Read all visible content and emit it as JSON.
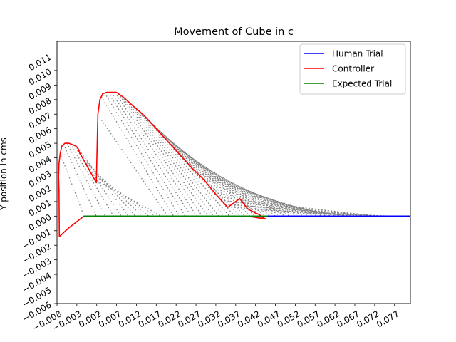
{
  "chart_data": {
    "type": "line",
    "title": "Movement of Cube in c",
    "xlabel": "",
    "ylabel": "Y position in cms",
    "xlim": [
      -0.008,
      0.081
    ],
    "ylim": [
      -0.006,
      0.012
    ],
    "x_ticks": [
      -0.008,
      -0.003,
      0.002,
      0.007,
      0.012,
      0.017,
      0.022,
      0.027,
      0.032,
      0.037,
      0.042,
      0.047,
      0.052,
      0.057,
      0.062,
      0.067,
      0.072,
      0.077
    ],
    "x_tick_labels": [
      "−0.008",
      "−0.003",
      "0.002",
      "0.007",
      "0.012",
      "0.017",
      "0.022",
      "0.027",
      "0.032",
      "0.037",
      "0.042",
      "0.047",
      "0.052",
      "0.057",
      "0.062",
      "0.067",
      "0.072",
      "0.077"
    ],
    "y_ticks": [
      -0.006,
      -0.005,
      -0.004,
      -0.003,
      -0.002,
      -0.001,
      0.0,
      0.001,
      0.002,
      0.003,
      0.004,
      0.005,
      0.006,
      0.007,
      0.008,
      0.009,
      0.01,
      0.011
    ],
    "y_tick_labels": [
      "−0.006",
      "−0.005",
      "−0.004",
      "−0.003",
      "−0.002",
      "−0.001",
      "0.000",
      "0.001",
      "0.002",
      "0.003",
      "0.004",
      "0.005",
      "0.006",
      "0.007",
      "0.008",
      "0.009",
      "0.010",
      "0.011"
    ],
    "grid": false,
    "legend_position": "top-right",
    "series": [
      {
        "name": "Human Trial",
        "color": "#0000ff",
        "x": [
          -0.0012,
          0.005,
          0.01,
          0.02,
          0.03,
          0.04,
          0.046,
          0.05,
          0.055,
          0.06,
          0.065,
          0.07,
          0.075,
          0.08,
          0.081
        ],
        "y": [
          0.0,
          0.0,
          0.0,
          0.0,
          0.0,
          0.0,
          0.0,
          0.0,
          0.0,
          0.0,
          0.0,
          0.0,
          0.0,
          0.0,
          0.0
        ]
      },
      {
        "name": "Controller",
        "color": "#ff0000",
        "x": [
          -0.0075,
          -0.0076,
          -0.0075,
          -0.0072,
          -0.0068,
          -0.006,
          -0.005,
          -0.004,
          -0.0032,
          -0.0026,
          -0.0024,
          0.0019,
          0.0022,
          0.0023,
          0.0028,
          0.0035,
          0.0045,
          0.0058,
          0.007,
          0.008,
          0.009,
          0.011,
          0.014,
          0.017,
          0.02,
          0.023,
          0.026,
          0.029,
          0.032,
          0.035,
          0.038,
          0.04,
          0.042,
          0.043,
          0.0438,
          0.0446,
          0.04,
          0.035,
          0.03,
          0.025,
          0.02,
          0.015,
          0.01,
          0.005,
          0.001,
          -0.0012,
          -0.005,
          -0.0074,
          -0.0075
        ],
        "y": [
          0.0018,
          0.0027,
          0.0036,
          0.0043,
          0.0048,
          0.005,
          0.005,
          0.0049,
          0.0048,
          0.0046,
          0.0044,
          0.0023,
          0.0058,
          0.007,
          0.008,
          0.0084,
          0.0085,
          0.0085,
          0.0085,
          0.0083,
          0.0081,
          0.0076,
          0.0069,
          0.006,
          0.0051,
          0.0042,
          0.0033,
          0.0025,
          0.0015,
          0.0006,
          0.0012,
          0.0005,
          0.0002,
          0.0001,
          -0.0001,
          -0.0002,
          0.0,
          0.0,
          0.0,
          0.0,
          0.0,
          0.0,
          0.0,
          0.0,
          0.0,
          0.0,
          -0.0008,
          -0.0014,
          0.0018
        ]
      },
      {
        "name": "Expected Trial",
        "color": "#008000",
        "x": [
          -0.0012,
          0.005,
          0.01,
          0.015,
          0.02,
          0.025,
          0.03,
          0.035,
          0.04,
          0.045,
          0.0446
        ],
        "y": [
          0.0,
          0.0,
          0.0,
          0.0,
          0.0,
          0.0,
          0.0,
          0.0,
          0.0,
          0.0,
          0.0
        ]
      }
    ],
    "connector_color": "#808080"
  }
}
